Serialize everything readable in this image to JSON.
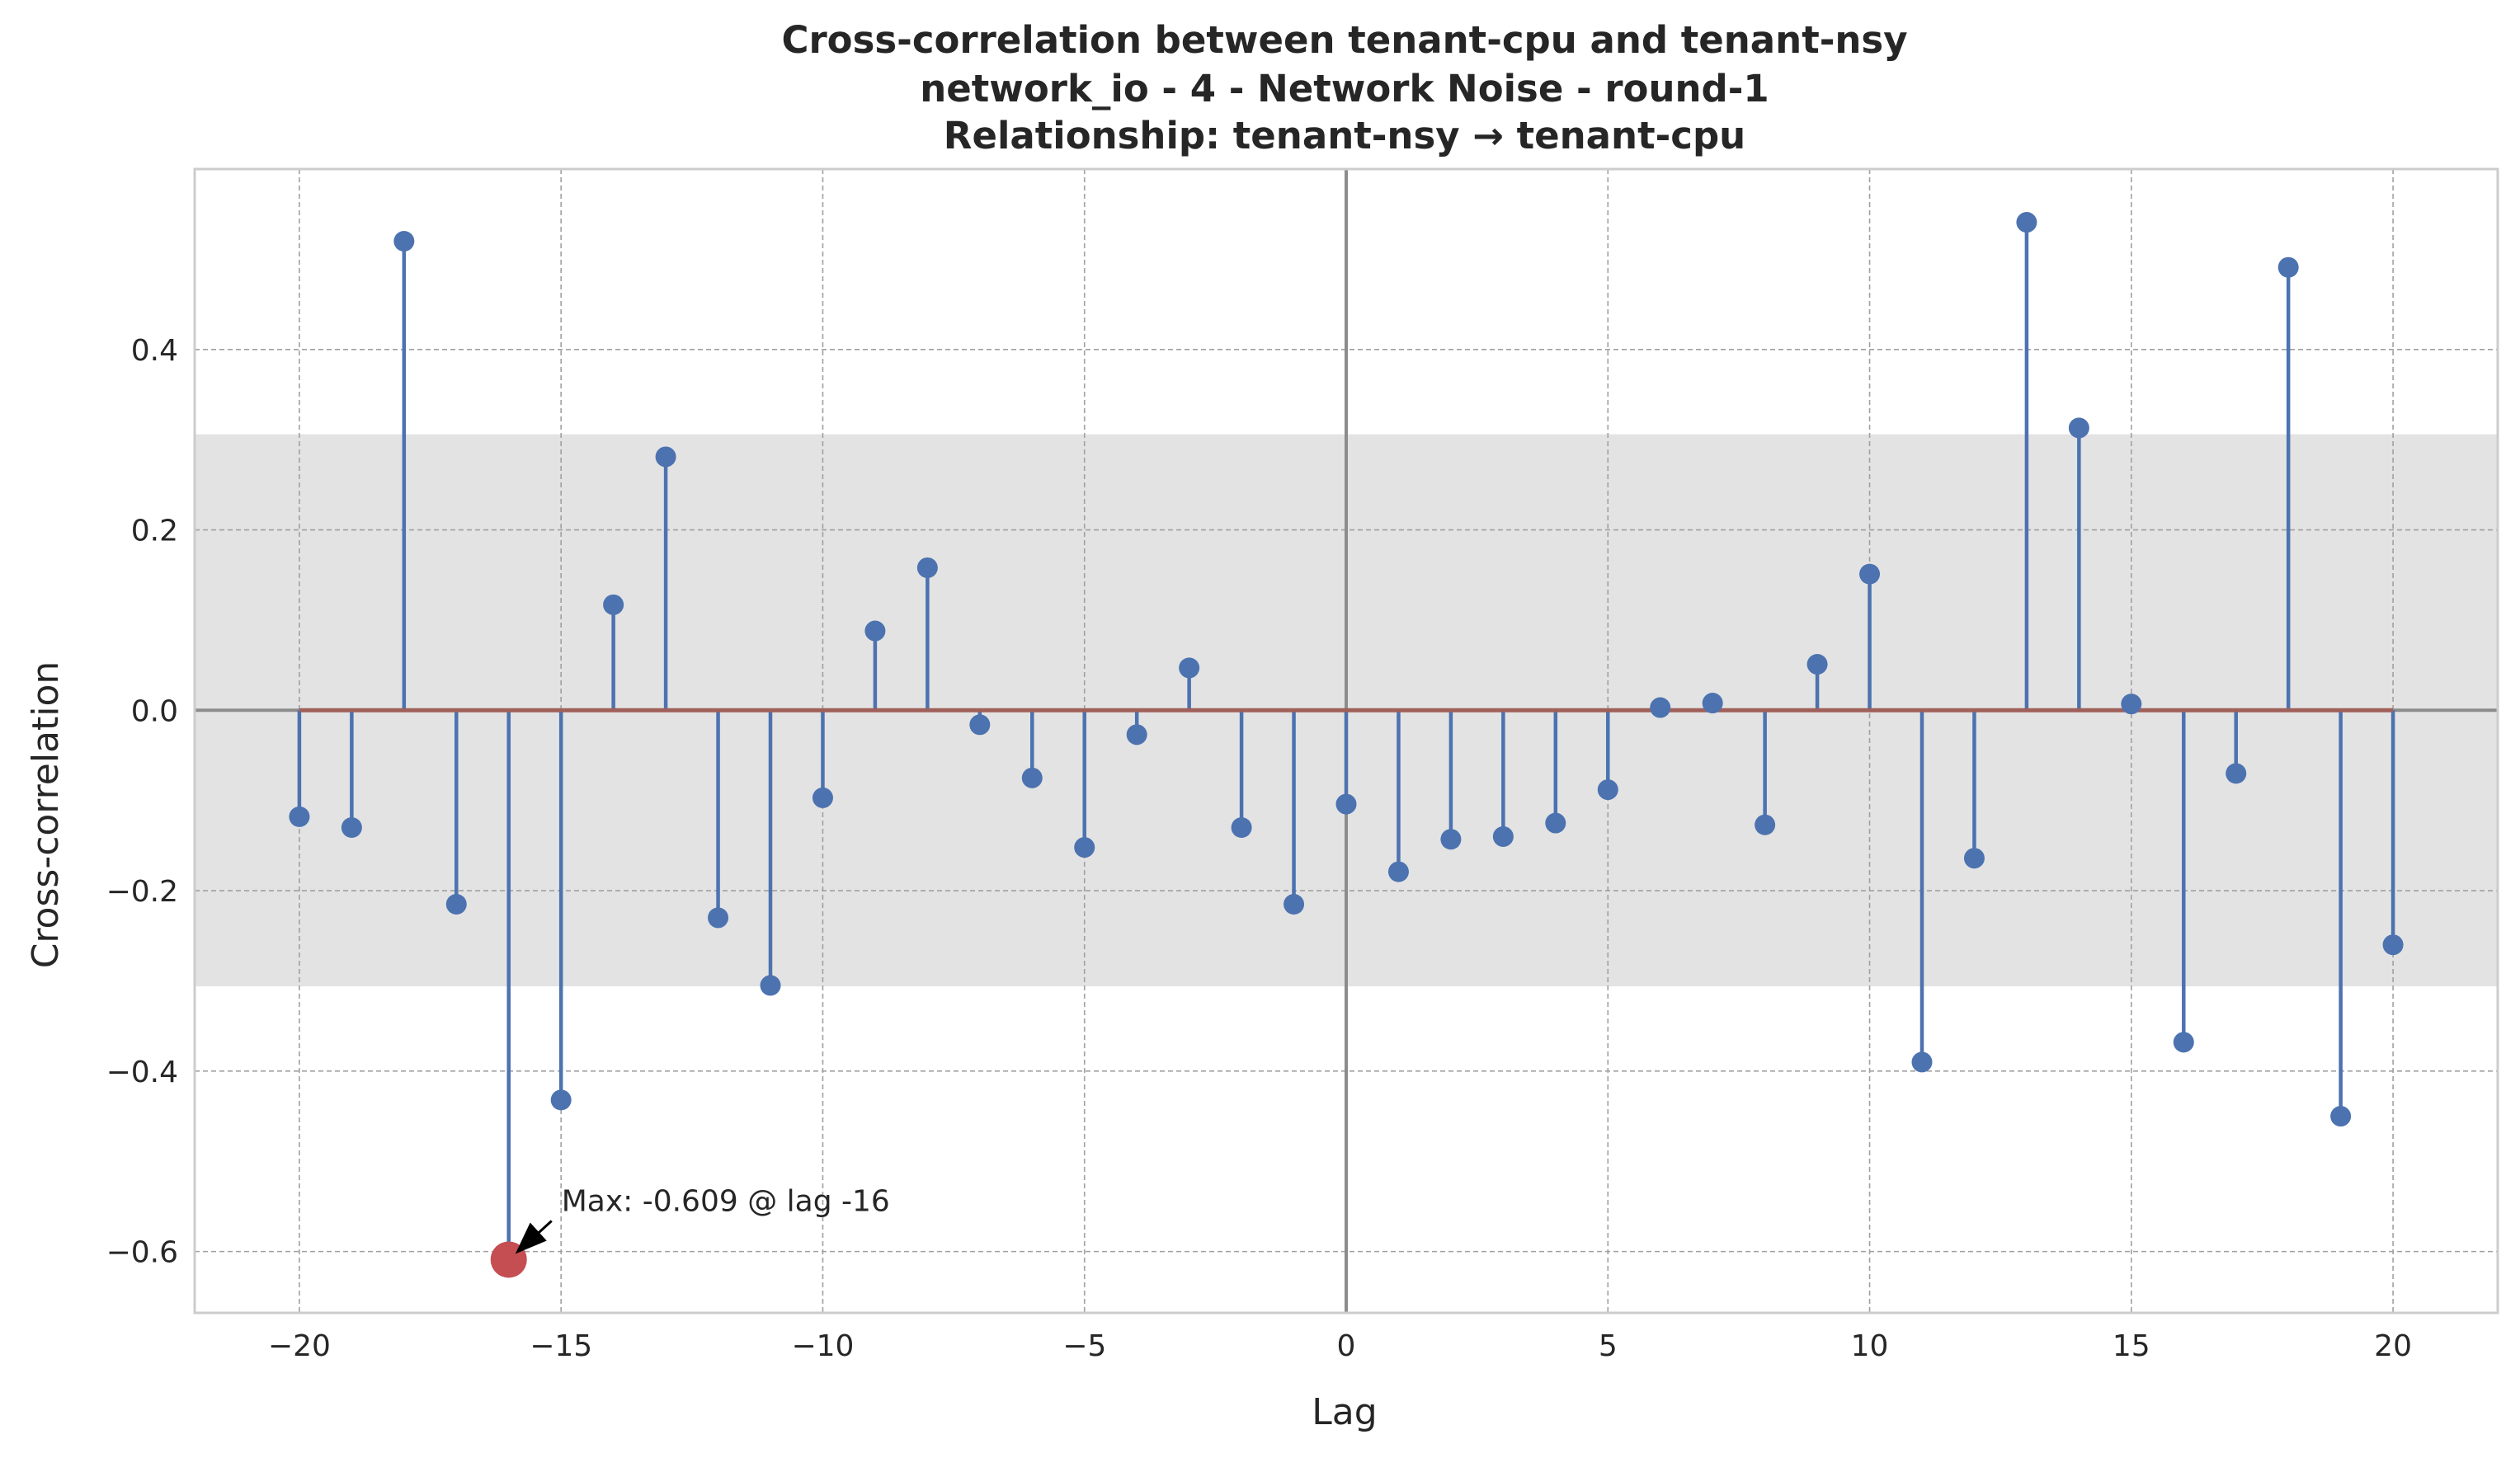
{
  "chart_data": {
    "type": "stem",
    "title_lines": [
      "Cross-correlation between tenant-cpu and tenant-nsy",
      "network_io - 4 - Network Noise - round-1",
      "Relationship: tenant-nsy → tenant-cpu"
    ],
    "xlabel": "Lag",
    "ylabel": "Cross-correlation",
    "xlim": [
      -22,
      22
    ],
    "ylim": [
      -0.668,
      0.6
    ],
    "x_ticks": [
      -20,
      -15,
      -10,
      -5,
      0,
      5,
      10,
      15,
      20
    ],
    "x_tick_labels": [
      "−20",
      "−15",
      "−10",
      "−5",
      "0",
      "5",
      "10",
      "15",
      "20"
    ],
    "y_ticks": [
      -0.6,
      -0.4,
      -0.2,
      0.0,
      0.2,
      0.4
    ],
    "y_tick_labels": [
      "−0.6",
      "−0.4",
      "−0.2",
      "0.0",
      "0.2",
      "0.4"
    ],
    "confidence_band": [
      -0.306,
      0.306
    ],
    "grid": true,
    "lags": [
      -20,
      -19,
      -18,
      -17,
      -16,
      -15,
      -14,
      -13,
      -12,
      -11,
      -10,
      -9,
      -8,
      -7,
      -6,
      -5,
      -4,
      -3,
      -2,
      -1,
      0,
      1,
      2,
      3,
      4,
      5,
      6,
      7,
      8,
      9,
      10,
      11,
      12,
      13,
      14,
      15,
      16,
      17,
      18,
      19,
      20
    ],
    "values": [
      -0.118,
      -0.13,
      0.52,
      -0.215,
      -0.609,
      -0.432,
      0.117,
      0.281,
      -0.23,
      -0.305,
      -0.097,
      0.088,
      0.158,
      -0.016,
      -0.075,
      -0.152,
      -0.027,
      0.047,
      -0.13,
      -0.215,
      -0.104,
      -0.179,
      -0.143,
      -0.14,
      -0.125,
      -0.088,
      0.003,
      0.008,
      -0.127,
      0.051,
      0.151,
      -0.39,
      -0.164,
      0.541,
      0.313,
      0.007,
      -0.368,
      -0.07,
      0.491,
      -0.45,
      -0.26
    ],
    "max_point": {
      "lag": -16,
      "value": -0.609
    },
    "annotation": "Max: -0.609 @ lag -16",
    "colors": {
      "stem": "#4c72b0",
      "baseline": "#a0605a",
      "highlight": "#c44e52",
      "band": "#e3e3e3",
      "grid": "#a0a0a0",
      "zero_line": "#8c8c8c",
      "frame": "#cccccc"
    }
  }
}
